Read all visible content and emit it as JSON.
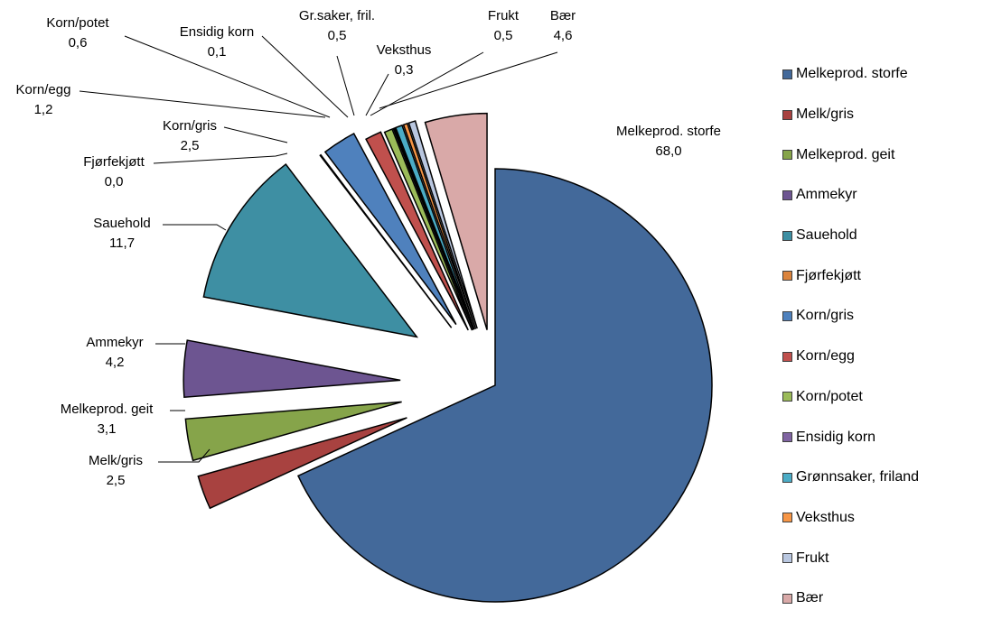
{
  "chart_data": {
    "type": "pie",
    "exploded": true,
    "legend_position": "right",
    "categories": [
      "Melkeprod. storfe",
      "Melk/gris",
      "Melkeprod. geit",
      "Ammekyr",
      "Sauehold",
      "Fjørfekjøtt",
      "Korn/gris",
      "Korn/egg",
      "Korn/potet",
      "Ensidig korn",
      "Grønnsaker, friland",
      "Veksthus",
      "Frukt",
      "Bær"
    ],
    "values": [
      68.0,
      2.5,
      3.1,
      4.2,
      11.7,
      0.0,
      2.5,
      1.2,
      0.6,
      0.1,
      0.5,
      0.3,
      0.5,
      4.6
    ],
    "slice_labels": [
      {
        "name": "Melkeprod. storfe",
        "value": "68,0"
      },
      {
        "name": "Melk/gris",
        "value": "2,5"
      },
      {
        "name": "Melkeprod. geit",
        "value": "3,1"
      },
      {
        "name": "Ammekyr",
        "value": "4,2"
      },
      {
        "name": "Sauehold",
        "value": "11,7"
      },
      {
        "name": "Fjørfekjøtt",
        "value": "0,0"
      },
      {
        "name": "Korn/gris",
        "value": "2,5"
      },
      {
        "name": "Korn/egg",
        "value": "1,2"
      },
      {
        "name": "Korn/potet",
        "value": "0,6"
      },
      {
        "name": "Ensidig korn",
        "value": "0,1"
      },
      {
        "name": "Gr.saker, fril.",
        "value": "0,5"
      },
      {
        "name": "Veksthus",
        "value": "0,3"
      },
      {
        "name": "Frukt",
        "value": "0,5"
      },
      {
        "name": "Bær",
        "value": "4,6"
      }
    ],
    "colors": [
      "#43699A",
      "#A84240",
      "#86A44A",
      "#6D5591",
      "#3E8FA3",
      "#DB843D",
      "#4F81BD",
      "#C0504D",
      "#9BBB59",
      "#8064A2",
      "#4BACC6",
      "#F79646",
      "#B9C7E0",
      "#D9A9A8"
    ]
  }
}
